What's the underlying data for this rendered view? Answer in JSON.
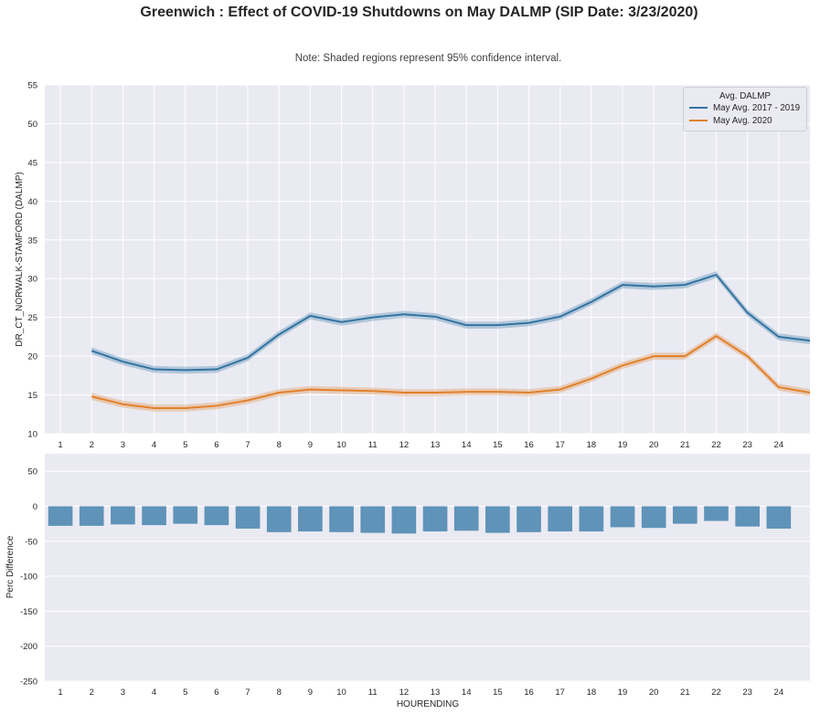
{
  "suptitle": "Greenwich : Effect of COVID-19 Shutdowns on May DALMP (SIP Date: 3/23/2020)",
  "note": "Note: Shaded regions represent 95% confidence interval.",
  "chart_data": [
    {
      "type": "line",
      "x": [
        2,
        3,
        4,
        5,
        6,
        7,
        8,
        9,
        10,
        11,
        12,
        13,
        14,
        15,
        16,
        17,
        18,
        19,
        20,
        21,
        22,
        23,
        24,
        25
      ],
      "series": [
        {
          "name": "May Avg. 2017 - 2019",
          "color": "#3274a1",
          "values": [
            20.7,
            19.3,
            18.3,
            18.2,
            18.3,
            19.8,
            22.8,
            25.2,
            24.4,
            25.0,
            25.4,
            25.1,
            24.0,
            24.0,
            24.3,
            25.1,
            27.0,
            29.2,
            29.0,
            29.2,
            30.5,
            25.6,
            22.5,
            22.0
          ],
          "ci": 0.45
        },
        {
          "name": "May Avg. 2020",
          "color": "#e1812c",
          "values": [
            14.8,
            13.8,
            13.3,
            13.3,
            13.6,
            14.3,
            15.3,
            15.7,
            15.6,
            15.5,
            15.3,
            15.3,
            15.4,
            15.4,
            15.3,
            15.7,
            17.1,
            18.8,
            20.0,
            20.0,
            22.6,
            20.0,
            16.0,
            15.3
          ],
          "ci": 0.45
        }
      ],
      "legend_title": "Avg. DALMP",
      "legend_position": "upper-right",
      "xticks": [
        "1",
        "2",
        "3",
        "4",
        "5",
        "6",
        "7",
        "8",
        "9",
        "10",
        "11",
        "12",
        "13",
        "14",
        "15",
        "16",
        "17",
        "18",
        "19",
        "20",
        "21",
        "22",
        "23",
        "24"
      ],
      "yticks": [
        "10",
        "15",
        "20",
        "25",
        "30",
        "35",
        "40",
        "45",
        "50",
        "55"
      ],
      "ylabel": "DR_CT_NORWALK-STAMFORD (DALMP)",
      "xlabel": "",
      "ylim": [
        10,
        55
      ],
      "xlim": [
        0.5,
        25
      ]
    },
    {
      "type": "bar",
      "categories": [
        "1",
        "2",
        "3",
        "4",
        "5",
        "6",
        "7",
        "8",
        "9",
        "10",
        "11",
        "12",
        "13",
        "14",
        "15",
        "16",
        "17",
        "18",
        "19",
        "20",
        "21",
        "22",
        "23",
        "24"
      ],
      "values": [
        -28,
        -28,
        -26,
        -27,
        -25,
        -27,
        -32,
        -37,
        -36,
        -37,
        -38,
        -39,
        -36,
        -35,
        -38,
        -37,
        -36,
        -36,
        -30,
        -31,
        -25,
        -21,
        -29,
        -32
      ],
      "color": "#5f93b8",
      "yticks": [
        "50",
        "0",
        "-50",
        "-100",
        "-150",
        "-200",
        "-250"
      ],
      "ylabel": "Perc Difference",
      "xlabel": "HOURENDING",
      "ylim": [
        -250,
        75
      ]
    }
  ]
}
